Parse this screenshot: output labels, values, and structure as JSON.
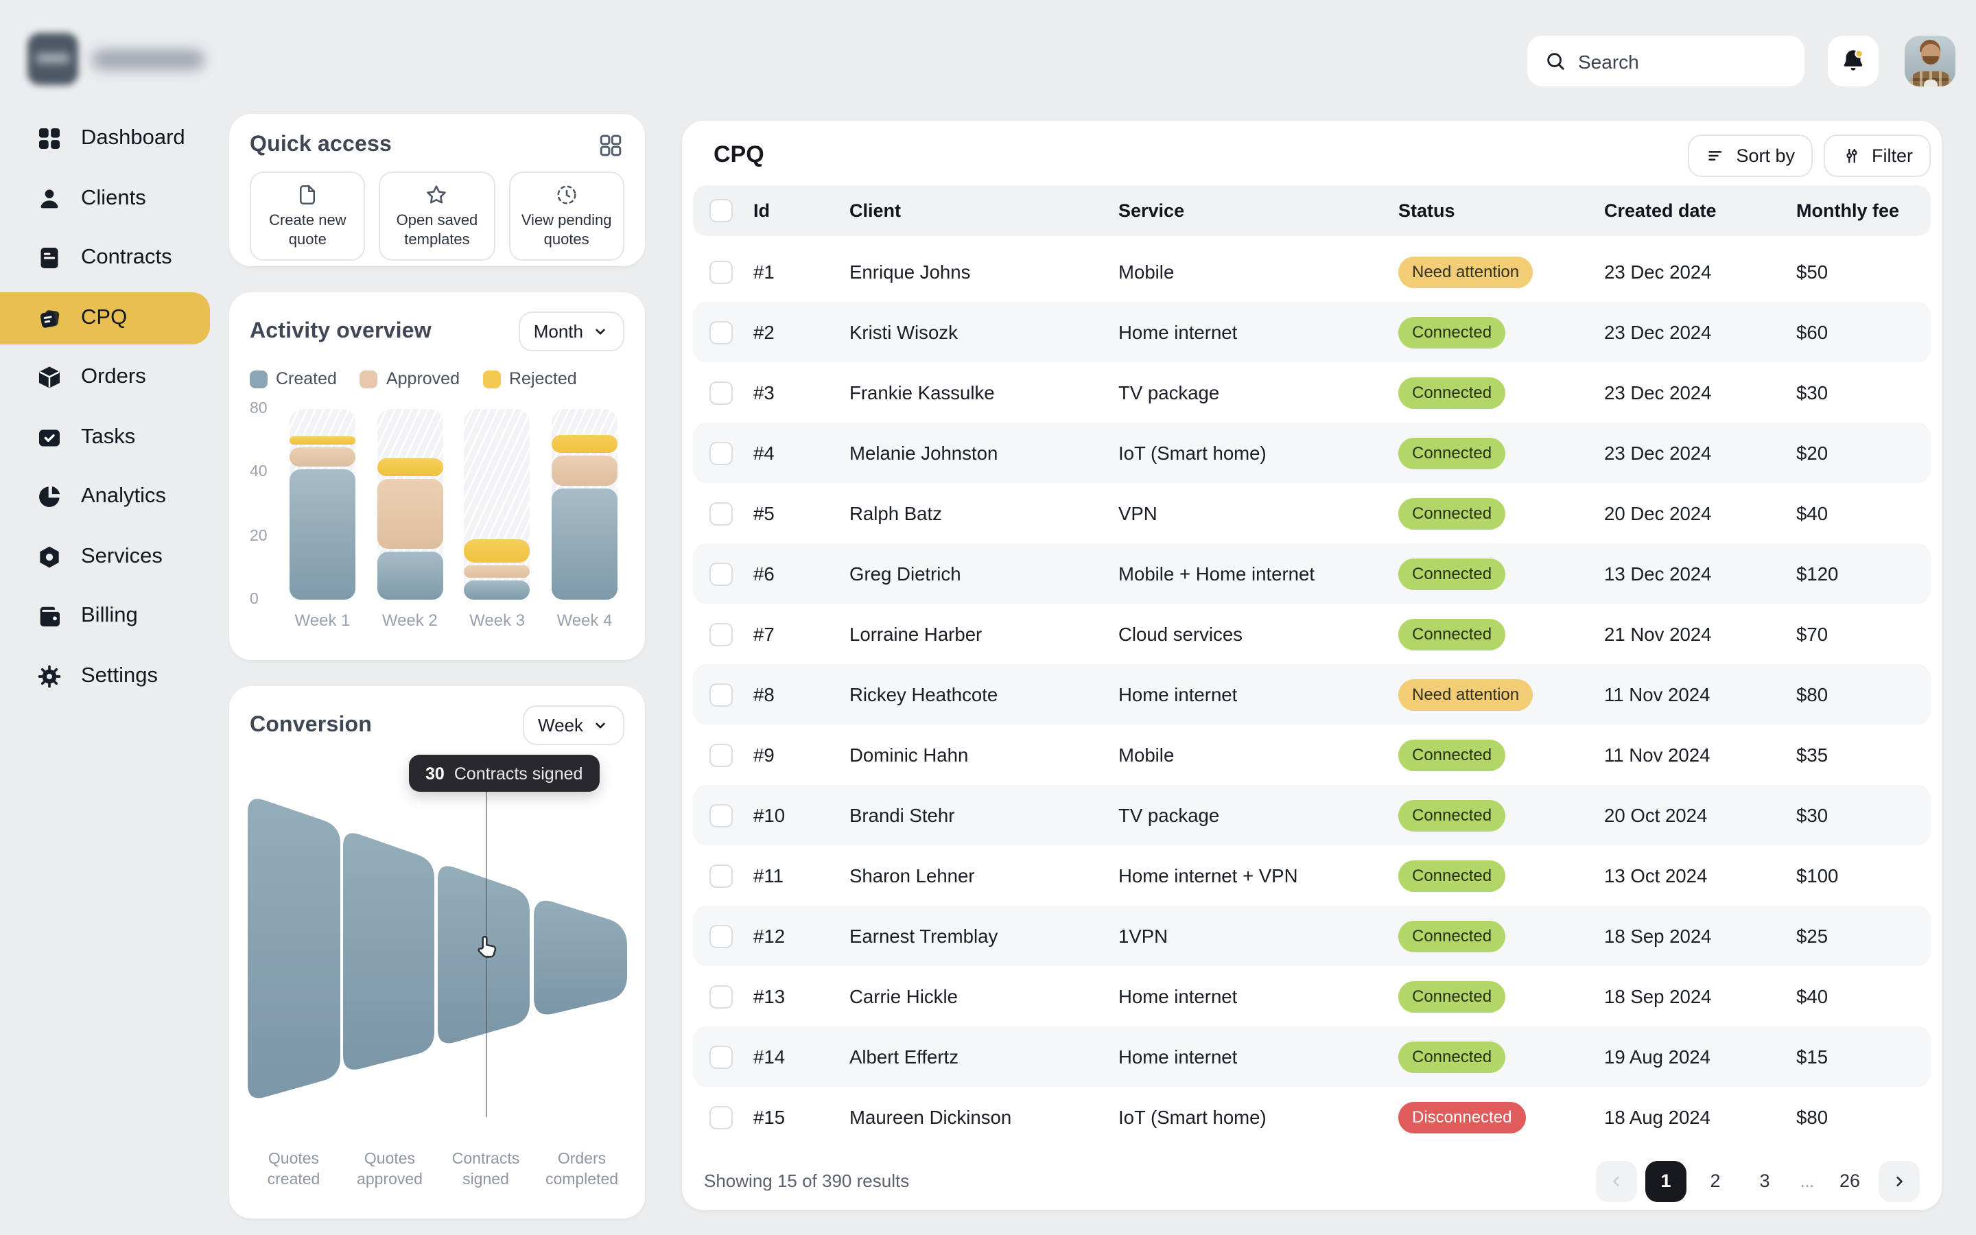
{
  "topbar": {
    "search_placeholder": "Search"
  },
  "sidebar": {
    "active_color": "#e9bf52",
    "items": [
      {
        "label": "Dashboard",
        "icon": "dashboard",
        "active": false
      },
      {
        "label": "Clients",
        "icon": "clients",
        "active": false
      },
      {
        "label": "Contracts",
        "icon": "contracts",
        "active": false
      },
      {
        "label": "CPQ",
        "icon": "cpq",
        "active": true
      },
      {
        "label": "Orders",
        "icon": "orders",
        "active": false
      },
      {
        "label": "Tasks",
        "icon": "tasks",
        "active": false
      },
      {
        "label": "Analytics",
        "icon": "analytics",
        "active": false
      },
      {
        "label": "Services",
        "icon": "services",
        "active": false
      },
      {
        "label": "Billing",
        "icon": "billing",
        "active": false
      },
      {
        "label": "Settings",
        "icon": "settings",
        "active": false
      }
    ]
  },
  "quick_access": {
    "title": "Quick access",
    "menu_icon": "apps-grid",
    "items": [
      {
        "label": "Create new quote",
        "icon": "file"
      },
      {
        "label": "Open saved templates",
        "icon": "star"
      },
      {
        "label": "View pending quotes",
        "icon": "clock-pending"
      }
    ]
  },
  "activity": {
    "title": "Activity overview",
    "range_label": "Month"
  },
  "conversion": {
    "title": "Conversion",
    "range_label": "Week",
    "tooltip": {
      "value": "30",
      "label": "Contracts signed"
    }
  },
  "chart_data": [
    {
      "type": "bar",
      "title": "Activity overview",
      "stacked": true,
      "categories": [
        "Week 1",
        "Week 2",
        "Week 3",
        "Week 4"
      ],
      "series": [
        {
          "name": "Created",
          "color": "#8aa5b3",
          "values": [
            42,
            15,
            6,
            35
          ]
        },
        {
          "name": "Approved",
          "color": "#e6c9ac",
          "values": [
            14,
            23,
            5,
            16
          ]
        },
        {
          "name": "Rejected",
          "color": "#f3c94f",
          "values": [
            7,
            11,
            8,
            13
          ]
        }
      ],
      "yticks": [
        0,
        20,
        40,
        80
      ],
      "ylim": [
        0,
        80
      ],
      "grid": false,
      "legend_position": "top",
      "note": "y-axis ticks 0/20/40/80 are evenly spaced (non-linear scale); values estimated from bar heights"
    },
    {
      "type": "funnel",
      "title": "Conversion",
      "stages": [
        "Quotes created",
        "Quotes approved",
        "Contracts signed",
        "Orders completed"
      ],
      "highlight": {
        "stage": "Contracts signed",
        "value": 30
      },
      "color": "#87a0af"
    }
  ],
  "cpq": {
    "title": "CPQ",
    "sort_label": "Sort by",
    "filter_label": "Filter",
    "columns": [
      "Id",
      "Client",
      "Service",
      "Status",
      "Created date",
      "Monthly fee"
    ],
    "status_colors": {
      "Connected": "#b2d768",
      "Need attention": "#f2cd75",
      "Disconnected": "#e05c5a"
    },
    "rows": [
      {
        "id": "#1",
        "client": "Enrique Johns",
        "service": "Mobile",
        "status": "Need attention",
        "status_type": "warning",
        "created": "23 Dec 2024",
        "fee": "$50"
      },
      {
        "id": "#2",
        "client": "Kristi Wisozk",
        "service": "Home internet",
        "status": "Connected",
        "status_type": "success",
        "created": "23 Dec 2024",
        "fee": "$60"
      },
      {
        "id": "#3",
        "client": "Frankie Kassulke",
        "service": "TV package",
        "status": "Connected",
        "status_type": "success",
        "created": "23 Dec 2024",
        "fee": "$30"
      },
      {
        "id": "#4",
        "client": "Melanie Johnston",
        "service": "IoT (Smart home)",
        "status": "Connected",
        "status_type": "success",
        "created": "23 Dec 2024",
        "fee": "$20"
      },
      {
        "id": "#5",
        "client": "Ralph Batz",
        "service": "VPN",
        "status": "Connected",
        "status_type": "success",
        "created": "20 Dec 2024",
        "fee": "$40"
      },
      {
        "id": "#6",
        "client": "Greg Dietrich",
        "service": "Mobile + Home internet",
        "status": "Connected",
        "status_type": "success",
        "created": "13 Dec 2024",
        "fee": "$120"
      },
      {
        "id": "#7",
        "client": "Lorraine Harber",
        "service": "Cloud services",
        "status": "Connected",
        "status_type": "success",
        "created": "21 Nov 2024",
        "fee": "$70"
      },
      {
        "id": "#8",
        "client": "Rickey Heathcote",
        "service": "Home internet",
        "status": "Need attention",
        "status_type": "warning",
        "created": "11 Nov 2024",
        "fee": "$80"
      },
      {
        "id": "#9",
        "client": "Dominic Hahn",
        "service": "Mobile",
        "status": "Connected",
        "status_type": "success",
        "created": "11 Nov 2024",
        "fee": "$35"
      },
      {
        "id": "#10",
        "client": "Brandi Stehr",
        "service": "TV package",
        "status": "Connected",
        "status_type": "success",
        "created": "20 Oct 2024",
        "fee": "$30"
      },
      {
        "id": "#11",
        "client": "Sharon Lehner",
        "service": "Home internet + VPN",
        "status": "Connected",
        "status_type": "success",
        "created": "13 Oct 2024",
        "fee": "$100"
      },
      {
        "id": "#12",
        "client": "Earnest Tremblay",
        "service": "1VPN",
        "status": "Connected",
        "status_type": "success",
        "created": "18 Sep 2024",
        "fee": "$25"
      },
      {
        "id": "#13",
        "client": "Carrie Hickle",
        "service": "Home internet",
        "status": "Connected",
        "status_type": "success",
        "created": "18 Sep 2024",
        "fee": "$40"
      },
      {
        "id": "#14",
        "client": "Albert Effertz",
        "service": "Home internet",
        "status": "Connected",
        "status_type": "success",
        "created": "19 Aug 2024",
        "fee": "$15"
      },
      {
        "id": "#15",
        "client": "Maureen Dickinson",
        "service": "IoT (Smart home)",
        "status": "Disconnected",
        "status_type": "danger",
        "created": "18 Aug 2024",
        "fee": "$80"
      }
    ],
    "pagination": {
      "summary": "Showing 15 of 390 results",
      "pages": [
        "1",
        "2",
        "3",
        "...",
        "26"
      ],
      "active_page": "1"
    }
  }
}
